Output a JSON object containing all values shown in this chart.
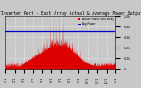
{
  "title": "Solar PV/Inverter Perf - East Array Actual & Average Power Output",
  "legend_actual": "Actual Power East Array",
  "legend_avg": "Avg Power",
  "bg_color": "#c8c8c8",
  "plot_bg": "#c8c8c8",
  "actual_color": "#dd0000",
  "avg_color": "#0000cc",
  "avg_value": 0.72,
  "num_points": 700,
  "ylim": [
    0,
    1.0
  ],
  "xlim": [
    0,
    700
  ],
  "x_tick_positions": [
    0,
    58,
    116,
    175,
    233,
    291,
    350,
    408,
    466,
    525,
    583,
    641,
    700
  ],
  "x_tick_labels": [
    "1/1",
    "2/1",
    "3/1",
    "4/1",
    "5/1",
    "6/1",
    "7/1",
    "8/1",
    "9/1",
    "10/1",
    "11/1",
    "12/1",
    "1/1"
  ],
  "y_ticks": [
    0.0,
    0.2,
    0.4,
    0.6,
    0.8,
    1.0
  ],
  "y_tick_labels": [
    "0",
    "0.2k",
    "0.4k",
    "0.6k",
    "0.8k",
    "1.0k"
  ]
}
